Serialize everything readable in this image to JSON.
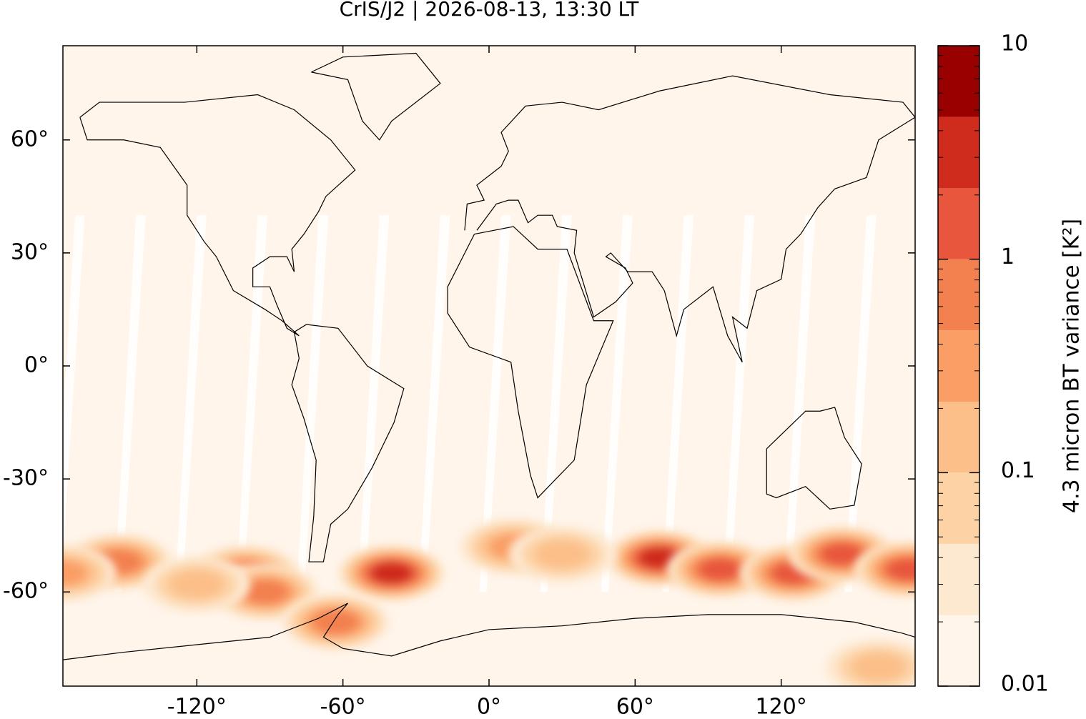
{
  "chart_data": {
    "type": "map",
    "title": "CrIS/J2 | 2026-08-13, 13:30 LT",
    "xlim": [
      -175,
      175
    ],
    "ylim": [
      -85,
      85
    ],
    "xticks": [
      {
        "value": -120,
        "label": "-120°"
      },
      {
        "value": -60,
        "label": "-60°"
      },
      {
        "value": 0,
        "label": "0°"
      },
      {
        "value": 60,
        "label": "60°"
      },
      {
        "value": 120,
        "label": "120°"
      }
    ],
    "yticks": [
      {
        "value": 60,
        "label": "60°"
      },
      {
        "value": 30,
        "label": "30°"
      },
      {
        "value": 0,
        "label": "0°"
      },
      {
        "value": -30,
        "label": "-30°"
      },
      {
        "value": -60,
        "label": "-60°"
      }
    ],
    "colorbar": {
      "label": "4.3 micron BT variance [K²]",
      "log_scale": true,
      "lim": [
        0.01,
        10
      ],
      "ticks": [
        0.01,
        0.1,
        1,
        10
      ],
      "levels": [
        0.01,
        0.0215,
        0.0464,
        0.1,
        0.215,
        0.464,
        1,
        2.15,
        4.64,
        10
      ],
      "colors": [
        "#fff5eb",
        "#fde8d0",
        "#fdd3a5",
        "#fcbf8a",
        "#fa9e66",
        "#f3804f",
        "#e8573d",
        "#cf2c1d",
        "#990000"
      ]
    },
    "hotspots": {
      "lon": [
        -152,
        -100,
        -92,
        -40,
        -63,
        70,
        95,
        125,
        145,
        172,
        10,
        -120,
        30,
        160,
        -175
      ],
      "lat": [
        -52,
        -55,
        -60,
        -55,
        -68,
        -51,
        -54,
        -55,
        -50,
        -54,
        -48,
        -58,
        -50,
        -80,
        -55
      ],
      "values": [
        0.5,
        0.5,
        0.6,
        3,
        0.8,
        3,
        1,
        1.2,
        2,
        2,
        0.3,
        0.2,
        0.15,
        0.1,
        0.3
      ]
    }
  }
}
